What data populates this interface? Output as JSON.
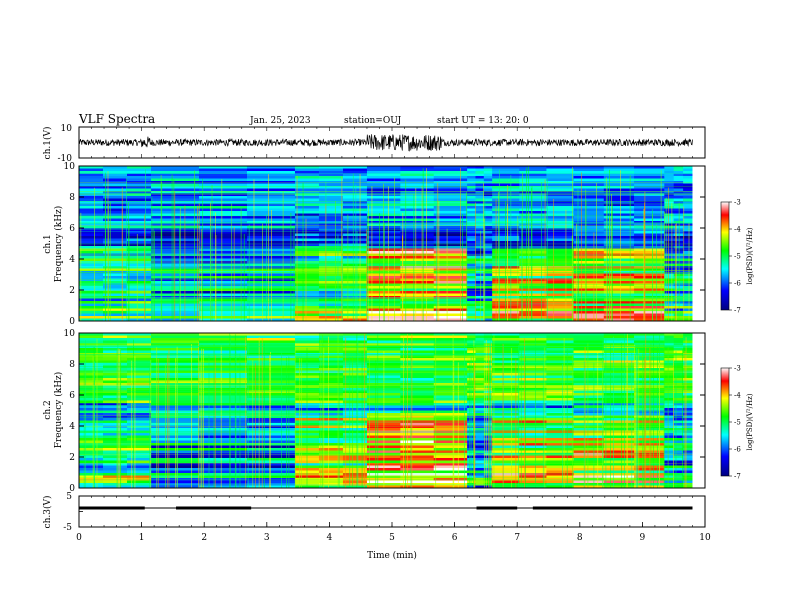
{
  "header": {
    "title": "VLF Spectra",
    "date": "Jan. 25, 2023",
    "station": "station=OUJ",
    "start": "start UT =  13: 20: 0"
  },
  "chart_data": [
    {
      "type": "line",
      "panel": "waveform-ch1",
      "ylabel": "ch.1(V)",
      "ylim": [
        -10,
        10
      ],
      "yticks": [
        "10",
        "-10"
      ],
      "xlim": [
        0,
        10
      ],
      "series": [
        {
          "values": "continuous waveform, ~±2 V baseline, bursts near 4.6–5.8 min"
        }
      ]
    },
    {
      "type": "heatmap",
      "panel": "spectrogram-ch1",
      "ylabel": "ch.1\nFrequency (kHz)",
      "ylim": [
        0,
        10
      ],
      "yticks": [
        "0",
        "2",
        "4",
        "6",
        "8",
        "10"
      ],
      "xlim": [
        0,
        10
      ],
      "colorbar": {
        "label": "log(PSD)(V²/Hz)",
        "range": [
          -7,
          -3
        ],
        "ticks": [
          "-3",
          "-4",
          "-5",
          "-6",
          "-7"
        ]
      },
      "segments": [
        {
          "t0": 0.0,
          "t1": 1.15,
          "fmax": 4.8,
          "level": 0.45
        },
        {
          "t0": 1.15,
          "t1": 3.45,
          "fmax": 4.3,
          "level": 0.35
        },
        {
          "t0": 3.45,
          "t1": 4.6,
          "fmax": 4.8,
          "level": 0.5
        },
        {
          "t0": 4.6,
          "t1": 6.2,
          "fmax": 4.6,
          "level": 0.72
        },
        {
          "t0": 6.2,
          "t1": 6.6,
          "fmax": 4.3,
          "level": 0.35
        },
        {
          "t0": 6.6,
          "t1": 7.9,
          "fmax": 4.7,
          "level": 0.62
        },
        {
          "t0": 7.9,
          "t1": 9.35,
          "fmax": 4.7,
          "level": 0.68
        },
        {
          "t0": 9.35,
          "t1": 9.8,
          "fmax": 4.3,
          "level": 0.35
        }
      ]
    },
    {
      "type": "heatmap",
      "panel": "spectrogram-ch2",
      "ylabel": "ch.2\nFrequency (kHz)",
      "ylim": [
        0,
        10
      ],
      "yticks": [
        "0",
        "2",
        "4",
        "6",
        "8",
        "10"
      ],
      "xlim": [
        0,
        10
      ],
      "colorbar": {
        "label": "log(PSD)(V²/Hz)",
        "range": [
          -7,
          -3
        ],
        "ticks": [
          "-3",
          "-4",
          "-5",
          "-6",
          "-7"
        ]
      },
      "segments": [
        {
          "t0": 0.0,
          "t1": 1.15,
          "fmax": 3.5,
          "level": 0.45
        },
        {
          "t0": 1.15,
          "t1": 3.45,
          "fmax": 3.0,
          "level": 0.3
        },
        {
          "t0": 3.45,
          "t1": 4.6,
          "fmax": 4.6,
          "level": 0.6
        },
        {
          "t0": 4.6,
          "t1": 6.2,
          "fmax": 4.8,
          "level": 0.75
        },
        {
          "t0": 6.2,
          "t1": 6.6,
          "fmax": 3.0,
          "level": 0.3
        },
        {
          "t0": 6.6,
          "t1": 7.9,
          "fmax": 4.6,
          "level": 0.62
        },
        {
          "t0": 7.9,
          "t1": 9.35,
          "fmax": 4.6,
          "level": 0.66
        },
        {
          "t0": 9.35,
          "t1": 9.8,
          "fmax": 3.0,
          "level": 0.3
        }
      ]
    },
    {
      "type": "line",
      "panel": "ch3",
      "ylabel": "ch.3(V)",
      "ylim": [
        -5,
        5
      ],
      "yticks": [
        "5",
        "0",
        "-5"
      ],
      "xlim": [
        0,
        10
      ],
      "xlabel": "Time (min)",
      "xticks": [
        "0",
        "1",
        "2",
        "3",
        "4",
        "5",
        "6",
        "7",
        "8",
        "9",
        "10"
      ],
      "series": [
        {
          "name": "",
          "level_V": 0,
          "thick_intervals": [
            [
              0,
              1.05
            ],
            [
              1.55,
              2.75
            ],
            [
              6.35,
              7.0
            ],
            [
              7.25,
              9.8
            ]
          ],
          "end": 9.8
        }
      ]
    }
  ]
}
